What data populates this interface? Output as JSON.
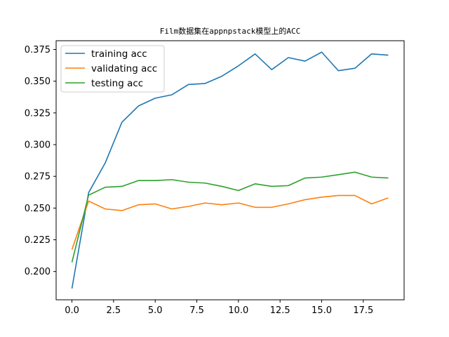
{
  "chart_data": {
    "type": "line",
    "title": "Film数据集在appnpstack模型上的ACC",
    "xlabel": "",
    "ylabel": "",
    "xlim": [
      -0.95,
      19.95
    ],
    "ylim": [
      0.1777,
      0.3819
    ],
    "xticks": [
      0,
      2.5,
      5,
      7.5,
      10,
      12.5,
      15,
      17.5
    ],
    "xtick_labels": [
      "0.0",
      "2.5",
      "5.0",
      "7.5",
      "10.0",
      "12.5",
      "15.0",
      "17.5"
    ],
    "yticks": [
      0.2,
      0.225,
      0.25,
      0.275,
      0.3,
      0.325,
      0.35,
      0.375
    ],
    "ytick_labels": [
      "0.200",
      "0.225",
      "0.250",
      "0.275",
      "0.300",
      "0.325",
      "0.350",
      "0.375"
    ],
    "legend_position": "top-left",
    "x": [
      0,
      1,
      2,
      3,
      4,
      5,
      6,
      7,
      8,
      9,
      10,
      11,
      12,
      13,
      14,
      15,
      16,
      17,
      18,
      19
    ],
    "series": [
      {
        "name": "training acc",
        "color": "#1f77b4",
        "values": [
          0.1866,
          0.2621,
          0.2856,
          0.3176,
          0.3305,
          0.3366,
          0.3393,
          0.3474,
          0.3482,
          0.3539,
          0.3621,
          0.3715,
          0.3591,
          0.3686,
          0.3658,
          0.3729,
          0.3583,
          0.3602,
          0.3715,
          0.3705
        ]
      },
      {
        "name": "validating acc",
        "color": "#ff7f0e",
        "values": [
          0.2173,
          0.2555,
          0.2493,
          0.248,
          0.2526,
          0.2533,
          0.2493,
          0.2513,
          0.254,
          0.2526,
          0.254,
          0.2506,
          0.2506,
          0.2533,
          0.2566,
          0.2586,
          0.2599,
          0.2599,
          0.2533,
          0.258
        ]
      },
      {
        "name": "testing acc",
        "color": "#2ca02c",
        "values": [
          0.2073,
          0.2602,
          0.2664,
          0.2671,
          0.2717,
          0.2717,
          0.2724,
          0.2704,
          0.2697,
          0.2671,
          0.2638,
          0.2691,
          0.2671,
          0.2677,
          0.2737,
          0.2744,
          0.2763,
          0.2783,
          0.2744,
          0.2737
        ]
      }
    ]
  }
}
